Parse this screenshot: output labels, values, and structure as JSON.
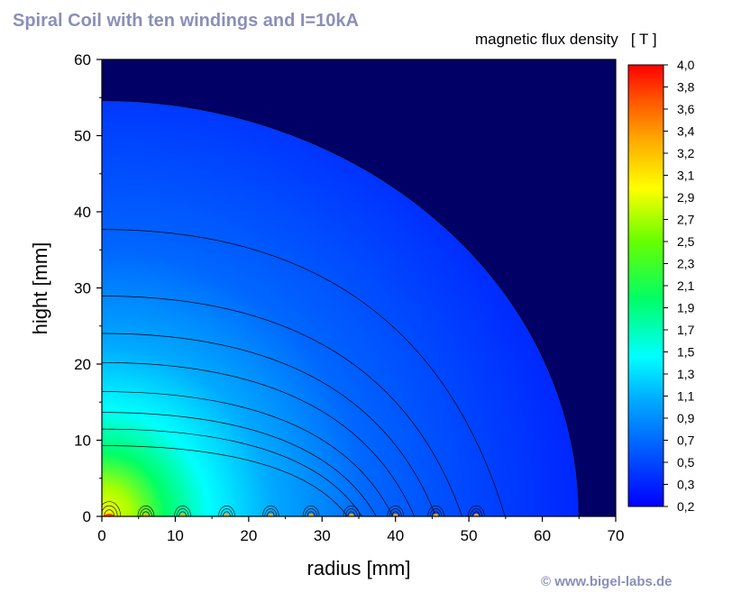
{
  "title": "Spiral Coil with ten windings and I=10kA",
  "colorbar_title": "magnetic flux density   [ T ]",
  "credit": "© www.bigel-labs.de",
  "chart_data": {
    "type": "heatmap",
    "xlabel": "radius [mm]",
    "ylabel": "hight [mm]",
    "xlim": [
      0,
      70
    ],
    "ylim": [
      0,
      60
    ],
    "xticks": [
      "0",
      "10",
      "20",
      "30",
      "40",
      "50",
      "60",
      "70"
    ],
    "yticks": [
      "0",
      "10",
      "20",
      "30",
      "40",
      "50",
      "60"
    ],
    "colorbar": {
      "label": "magnetic flux density   [ T ]",
      "range": [
        0.2,
        4.0
      ],
      "tick_labels": [
        "0,2",
        "0,3",
        "0,5",
        "0,7",
        "0,9",
        "1,1",
        "1,3",
        "1,5",
        "1,7",
        "1,9",
        "2,1",
        "2,3",
        "2,5",
        "2,7",
        "2,9",
        "3,1",
        "3,2",
        "3,4",
        "3,6",
        "3,8",
        "4,0"
      ],
      "colors": [
        "#0000ff",
        "#0055ff",
        "#00aaff",
        "#00ffff",
        "#00ff66",
        "#66ff00",
        "#ffff00",
        "#ffaa00",
        "#ff5500",
        "#ff0000"
      ]
    },
    "background_color": "#000066",
    "field_region_outer_radius_mm": 65,
    "windings_radius_mm": [
      1,
      6,
      11,
      17,
      23,
      28.5,
      34,
      40,
      45.5,
      51
    ],
    "windings": 10,
    "current": "10kA"
  }
}
